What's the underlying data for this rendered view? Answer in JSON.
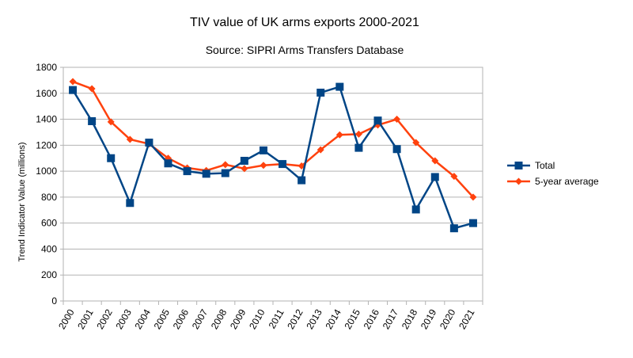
{
  "chart_data": {
    "type": "line",
    "title": "TIV value of UK arms exports 2000-2021",
    "subtitle": "Source: SIPRI Arms Transfers Database",
    "ylabel": "Trend Indicator Value (millions)",
    "xlabel": "",
    "ylim": [
      0,
      1800
    ],
    "yticks": [
      0,
      200,
      400,
      600,
      800,
      1000,
      1200,
      1400,
      1600,
      1800
    ],
    "grid": true,
    "legend_position": "right",
    "categories": [
      "2000",
      "2001",
      "2002",
      "2003",
      "2004",
      "2005",
      "2006",
      "2007",
      "2008",
      "2009",
      "2010",
      "2011",
      "2012",
      "2013",
      "2014",
      "2015",
      "2016",
      "2017",
      "2018",
      "2019",
      "2020",
      "2021"
    ],
    "series": [
      {
        "name": "Total",
        "color": "#004586",
        "marker": "square",
        "values": [
          1625,
          1385,
          1100,
          755,
          1220,
          1060,
          1000,
          980,
          985,
          1080,
          1160,
          1055,
          930,
          1605,
          1650,
          1180,
          1390,
          1170,
          705,
          955,
          560,
          600
        ]
      },
      {
        "name": "5-year average",
        "color": "#ff420e",
        "marker": "diamond",
        "values": [
          1690,
          1635,
          1380,
          1245,
          1210,
          1100,
          1025,
          1005,
          1050,
          1020,
          1045,
          1055,
          1040,
          1165,
          1280,
          1285,
          1355,
          1400,
          1220,
          1080,
          960,
          800
        ]
      }
    ]
  }
}
